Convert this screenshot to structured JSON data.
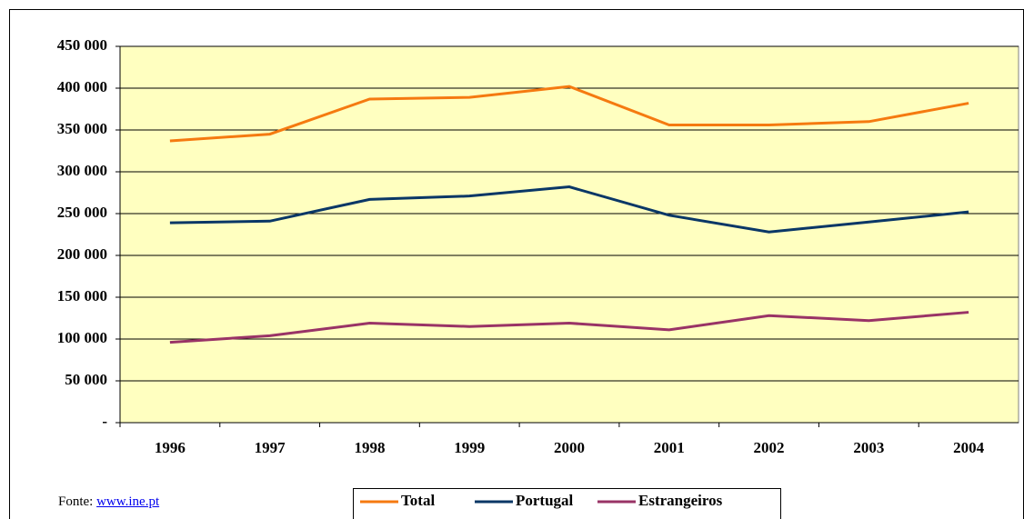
{
  "chart_data": {
    "type": "line",
    "categories": [
      "1996",
      "1997",
      "1998",
      "1999",
      "2000",
      "2001",
      "2002",
      "2003",
      "2004"
    ],
    "series": [
      {
        "name": "Total",
        "color": "#f57a10",
        "values": [
          337000,
          345000,
          387000,
          389000,
          402000,
          356000,
          356000,
          360000,
          382000
        ]
      },
      {
        "name": "Portugal",
        "color": "#0a3766",
        "values": [
          239000,
          241000,
          267000,
          271000,
          282000,
          248000,
          228000,
          240000,
          252000
        ]
      },
      {
        "name": "Estrangeiros",
        "color": "#993366",
        "values": [
          96000,
          104000,
          119000,
          115000,
          119000,
          111000,
          128000,
          122000,
          132000
        ]
      }
    ],
    "ylim": [
      0,
      450000
    ],
    "yticks": [
      {
        "value": 0,
        "label": "-"
      },
      {
        "value": 50000,
        "label": "50 000"
      },
      {
        "value": 100000,
        "label": "100 000"
      },
      {
        "value": 150000,
        "label": "150 000"
      },
      {
        "value": 200000,
        "label": "200 000"
      },
      {
        "value": 250000,
        "label": "250 000"
      },
      {
        "value": 300000,
        "label": "300 000"
      },
      {
        "value": 350000,
        "label": "350 000"
      },
      {
        "value": 400000,
        "label": "400 000"
      },
      {
        "value": 450000,
        "label": "450 000"
      }
    ],
    "grid": true,
    "legend": "bottom",
    "plot_background": "#ffffc0"
  },
  "source": {
    "prefix": "Fonte:",
    "link": "www.ine.pt"
  }
}
